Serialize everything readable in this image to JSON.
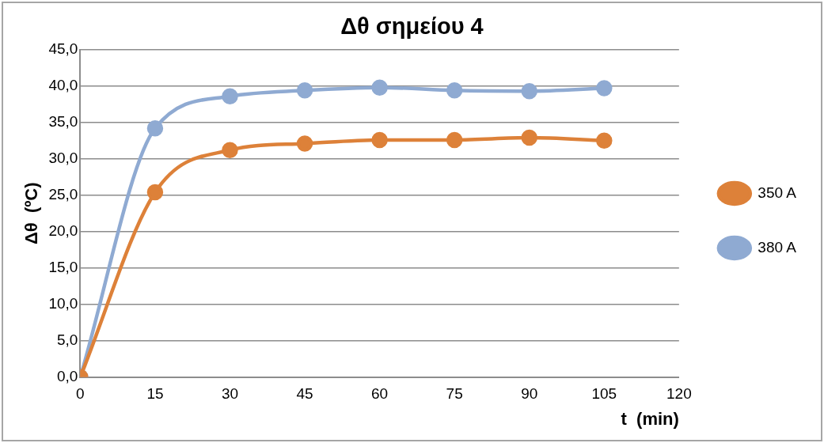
{
  "chart_data": {
    "type": "line",
    "title": "Δθ σημείου 4",
    "xlabel": "t  (min)",
    "ylabel": "Δθ  (ºC)",
    "x": [
      0,
      15,
      30,
      45,
      60,
      75,
      90,
      105
    ],
    "series": [
      {
        "name": "350 A",
        "color": "#dd8139",
        "values": [
          0,
          25.4,
          31.2,
          32.1,
          32.6,
          32.6,
          32.9,
          32.5
        ]
      },
      {
        "name": "380 A",
        "color": "#8faad2",
        "values": [
          0,
          34.2,
          38.6,
          39.4,
          39.8,
          39.4,
          39.3,
          39.7
        ]
      }
    ],
    "xlim": [
      0,
      120
    ],
    "xticks": [
      0,
      15,
      30,
      45,
      60,
      75,
      90,
      105,
      120
    ],
    "ylim": [
      0,
      45
    ],
    "yticks": [
      {
        "value": 0,
        "label": "0,0"
      },
      {
        "value": 5,
        "label": "5,0"
      },
      {
        "value": 10,
        "label": "10,0"
      },
      {
        "value": 15,
        "label": "15,0"
      },
      {
        "value": 20,
        "label": "20,0"
      },
      {
        "value": 25,
        "label": "25,0"
      },
      {
        "value": 30,
        "label": "30,0"
      },
      {
        "value": 35,
        "label": "35,0"
      },
      {
        "value": 40,
        "label": "40,0"
      },
      {
        "value": 45,
        "label": "45,0"
      }
    ],
    "grid": "y",
    "legend": "right",
    "marker": "circle",
    "line_style": "solid"
  }
}
